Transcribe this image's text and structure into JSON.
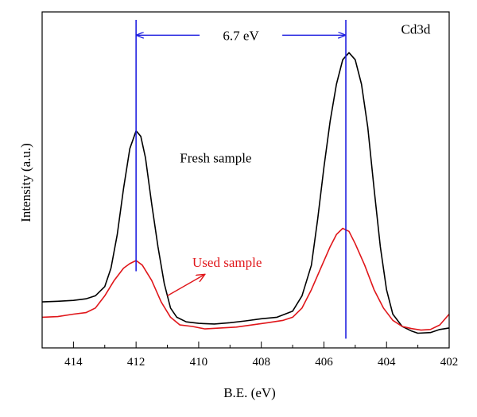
{
  "chart_data": {
    "type": "line",
    "title": "",
    "xlabel": "B.E. (eV)",
    "ylabel": "Intensity (a.u.)",
    "xlim": [
      415,
      402
    ],
    "x_reversed": true,
    "ylim": [
      0,
      1
    ],
    "xticks": [
      414,
      412,
      410,
      408,
      406,
      404,
      402
    ],
    "grid": false,
    "series": [
      {
        "name": "Fresh sample",
        "color": "#000000",
        "points": [
          [
            415.0,
            0.15
          ],
          [
            414.5,
            0.152
          ],
          [
            414.0,
            0.155
          ],
          [
            413.6,
            0.16
          ],
          [
            413.3,
            0.17
          ],
          [
            413.0,
            0.2
          ],
          [
            412.8,
            0.26
          ],
          [
            412.6,
            0.37
          ],
          [
            412.4,
            0.52
          ],
          [
            412.2,
            0.65
          ],
          [
            412.0,
            0.708
          ],
          [
            411.85,
            0.69
          ],
          [
            411.7,
            0.62
          ],
          [
            411.5,
            0.47
          ],
          [
            411.3,
            0.33
          ],
          [
            411.1,
            0.21
          ],
          [
            410.9,
            0.13
          ],
          [
            410.7,
            0.1
          ],
          [
            410.4,
            0.085
          ],
          [
            410.0,
            0.08
          ],
          [
            409.5,
            0.078
          ],
          [
            409.0,
            0.082
          ],
          [
            408.5,
            0.088
          ],
          [
            408.0,
            0.095
          ],
          [
            407.5,
            0.1
          ],
          [
            407.0,
            0.12
          ],
          [
            406.7,
            0.17
          ],
          [
            406.4,
            0.27
          ],
          [
            406.2,
            0.42
          ],
          [
            406.0,
            0.59
          ],
          [
            405.8,
            0.74
          ],
          [
            405.6,
            0.86
          ],
          [
            405.4,
            0.94
          ],
          [
            405.2,
            0.963
          ],
          [
            405.0,
            0.94
          ],
          [
            404.8,
            0.86
          ],
          [
            404.6,
            0.72
          ],
          [
            404.4,
            0.52
          ],
          [
            404.2,
            0.33
          ],
          [
            404.0,
            0.19
          ],
          [
            403.8,
            0.11
          ],
          [
            403.5,
            0.07
          ],
          [
            403.2,
            0.055
          ],
          [
            403.0,
            0.048
          ],
          [
            402.6,
            0.05
          ],
          [
            402.3,
            0.06
          ],
          [
            402.0,
            0.065
          ]
        ]
      },
      {
        "name": "Used sample",
        "color": "#e0161a",
        "points": [
          [
            415.0,
            0.1
          ],
          [
            414.5,
            0.102
          ],
          [
            414.0,
            0.11
          ],
          [
            413.6,
            0.115
          ],
          [
            413.3,
            0.13
          ],
          [
            413.0,
            0.17
          ],
          [
            412.7,
            0.22
          ],
          [
            412.4,
            0.26
          ],
          [
            412.2,
            0.275
          ],
          [
            412.0,
            0.285
          ],
          [
            411.8,
            0.27
          ],
          [
            411.5,
            0.22
          ],
          [
            411.2,
            0.15
          ],
          [
            410.9,
            0.1
          ],
          [
            410.6,
            0.075
          ],
          [
            410.2,
            0.07
          ],
          [
            409.8,
            0.062
          ],
          [
            409.3,
            0.065
          ],
          [
            408.8,
            0.068
          ],
          [
            408.3,
            0.075
          ],
          [
            407.8,
            0.082
          ],
          [
            407.3,
            0.09
          ],
          [
            407.0,
            0.1
          ],
          [
            406.7,
            0.13
          ],
          [
            406.4,
            0.19
          ],
          [
            406.1,
            0.26
          ],
          [
            405.8,
            0.33
          ],
          [
            405.6,
            0.37
          ],
          [
            405.4,
            0.39
          ],
          [
            405.2,
            0.38
          ],
          [
            405.0,
            0.34
          ],
          [
            404.7,
            0.27
          ],
          [
            404.4,
            0.19
          ],
          [
            404.1,
            0.13
          ],
          [
            403.8,
            0.09
          ],
          [
            403.5,
            0.07
          ],
          [
            403.2,
            0.063
          ],
          [
            402.9,
            0.058
          ],
          [
            402.6,
            0.06
          ],
          [
            402.3,
            0.075
          ],
          [
            402.0,
            0.11
          ]
        ]
      }
    ],
    "reference_lines": [
      {
        "x": 412.0,
        "y_range": [
          0.25,
          1.07
        ],
        "color": "#1f1fe0"
      },
      {
        "x": 405.3,
        "y_range": [
          0.03,
          1.07
        ],
        "color": "#1f1fe0"
      }
    ],
    "annotations": [
      {
        "text": "6.7 eV",
        "x": 408.65,
        "y": 1.02,
        "color": "#000000"
      },
      {
        "text": "Cd3d",
        "x": 402.6,
        "y": 1.04,
        "color": "#000000"
      },
      {
        "text": "Fresh sample",
        "x": 410.6,
        "y": 0.62,
        "color": "#000000"
      },
      {
        "text": "Used sample",
        "x": 410.2,
        "y": 0.28,
        "color": "#e0161a"
      }
    ],
    "interval_arrow": {
      "x1": 412.0,
      "x2": 405.3,
      "y": 1.02,
      "color": "#1f1fe0"
    },
    "pointer_arrow": {
      "from": [
        411.0,
        0.17
      ],
      "to": [
        409.8,
        0.24
      ],
      "color": "#e0161a"
    }
  }
}
